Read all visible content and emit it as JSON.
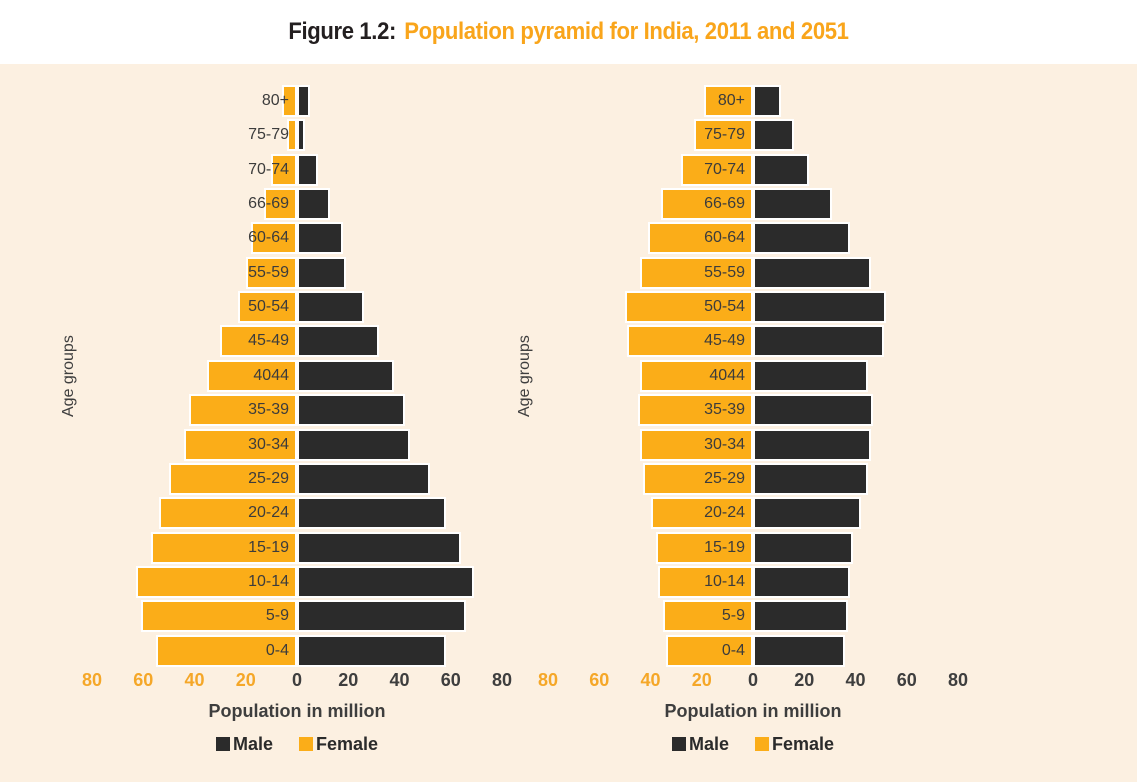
{
  "title": {
    "prefix": "Figure 1.2:",
    "text": "Population pyramid for India, 2011 and 2051"
  },
  "colors": {
    "male": "#2B2B2B",
    "female": "#FBAD18",
    "background": "#FCF0E1",
    "title_band": "#FFFFFF",
    "title_prefix": "#231F20",
    "title_accent": "#F9A51B",
    "axis_text": "#3E3E3E",
    "female_axis_text": "#F5A728",
    "bar_label_text": "#3C3C3C",
    "bar_outline": "#FFFFFF"
  },
  "chart_data": [
    {
      "type": "bar",
      "variant": "population-pyramid",
      "name": "2011",
      "ylabel": "Age groups",
      "xlabel": "Population in million",
      "xticks": [
        80,
        60,
        40,
        20,
        0,
        20,
        40,
        60,
        80
      ],
      "x_max_each_side": 80,
      "grid": false,
      "legend_position": "bottom",
      "categories_top_to_bottom": [
        "80+",
        "75-79",
        "70-74",
        "66-69",
        "60-64",
        "55-59",
        "50-54",
        "45-49",
        "4044",
        "35-39",
        "30-34",
        "25-29",
        "20-24",
        "15-19",
        "10-14",
        "5-9",
        "0-4"
      ],
      "series": [
        {
          "name": "Male",
          "side": "right",
          "values": [
            5,
            3,
            8,
            13,
            18,
            19,
            26,
            32,
            38,
            42,
            44,
            52,
            58,
            64,
            69,
            66,
            58
          ]
        },
        {
          "name": "Female",
          "side": "left",
          "values": [
            6,
            4,
            10,
            13,
            18,
            20,
            23,
            30,
            35,
            42,
            44,
            50,
            54,
            57,
            63,
            61,
            55
          ]
        }
      ],
      "legend": [
        "Male",
        "Female"
      ]
    },
    {
      "type": "bar",
      "variant": "population-pyramid",
      "name": "2051",
      "ylabel": "Age groups",
      "xlabel": "Population in million",
      "xticks": [
        80,
        60,
        40,
        20,
        0,
        20,
        40,
        60,
        80
      ],
      "x_max_each_side": 80,
      "grid": false,
      "legend_position": "bottom",
      "categories_top_to_bottom": [
        "80+",
        "75-79",
        "70-74",
        "66-69",
        "60-64",
        "55-59",
        "50-54",
        "45-49",
        "4044",
        "35-39",
        "30-34",
        "25-29",
        "20-24",
        "15-19",
        "10-14",
        "5-9",
        "0-4"
      ],
      "series": [
        {
          "name": "Male",
          "side": "right",
          "values": [
            11,
            16,
            22,
            31,
            38,
            46,
            52,
            51,
            45,
            47,
            46,
            45,
            42,
            39,
            38,
            37,
            36
          ]
        },
        {
          "name": "Female",
          "side": "left",
          "values": [
            19,
            23,
            28,
            36,
            41,
            44,
            50,
            49,
            44,
            45,
            44,
            43,
            40,
            38,
            37,
            35,
            34
          ]
        }
      ],
      "legend": [
        "Male",
        "Female"
      ]
    }
  ]
}
